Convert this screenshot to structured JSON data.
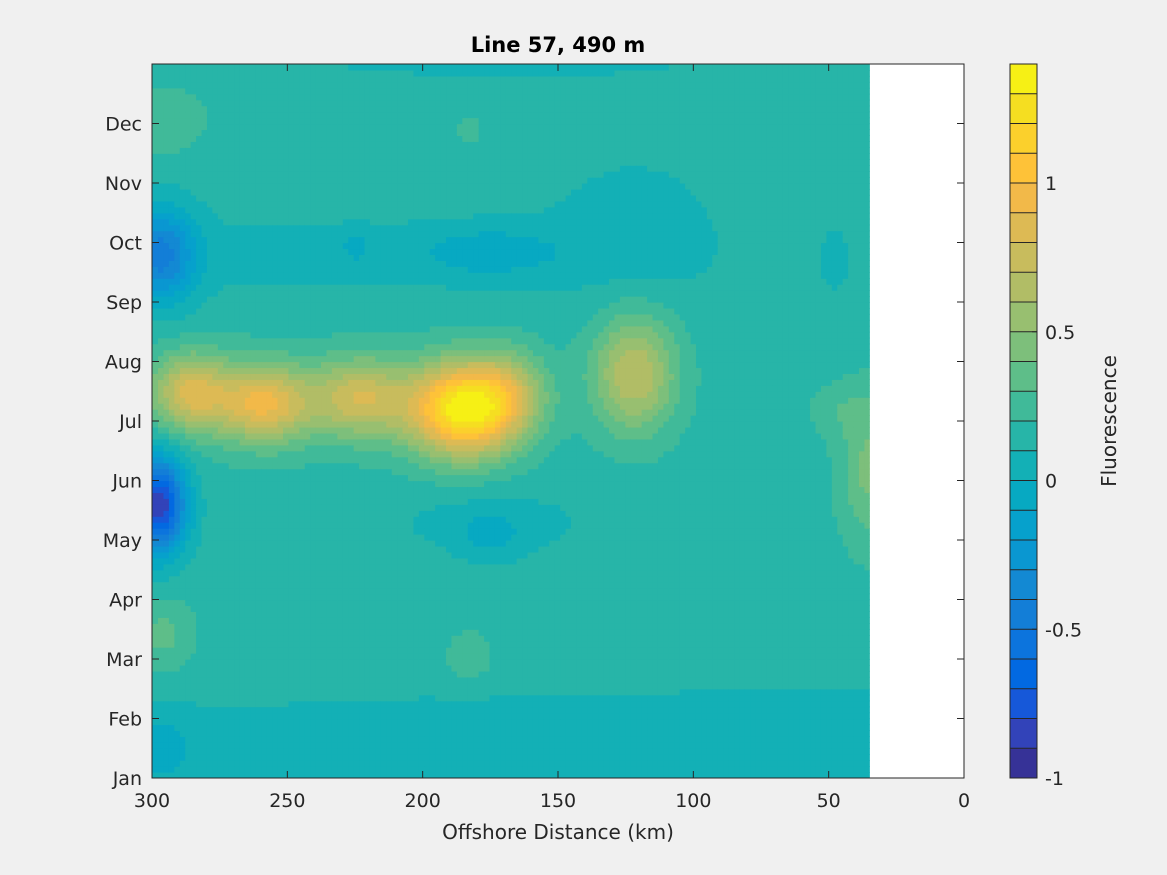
{
  "chart_data": {
    "type": "heatmap",
    "title": "Line 57, 490 m",
    "xlabel": "Offshore Distance (km)",
    "ylabel": "",
    "x_reversed": true,
    "xlim": [
      0,
      300
    ],
    "x_ticks": [
      300,
      250,
      200,
      150,
      100,
      50,
      0
    ],
    "x_tick_labels": [
      "300",
      "250",
      "200",
      "150",
      "100",
      "50",
      "0"
    ],
    "data_x_extent": [
      35,
      300
    ],
    "ylim": [
      1,
      13
    ],
    "y_ticks": [
      1,
      2,
      3,
      4,
      5,
      6,
      7,
      8,
      9,
      10,
      11,
      12
    ],
    "y_tick_labels": [
      "Jan",
      "Feb",
      "Mar",
      "Apr",
      "May",
      "Jun",
      "Jul",
      "Aug",
      "Sep",
      "Oct",
      "Nov",
      "Dec"
    ],
    "colorbar": {
      "label": "Fluorescence",
      "range": [
        -1,
        1.4
      ],
      "ticks": [
        -1,
        -0.5,
        0,
        0.5,
        1
      ],
      "tick_labels": [
        "-1",
        "-0.5",
        "0",
        "0.5",
        "1"
      ],
      "levels": 24,
      "colormap": "parula"
    },
    "background_value": 0.15,
    "features": [
      {
        "x": 185,
        "y": 7.2,
        "sx": 14,
        "sy": 0.55,
        "amp": 1.15
      },
      {
        "x": 168,
        "y": 7.5,
        "sx": 10,
        "sy": 0.5,
        "amp": 0.35
      },
      {
        "x": 122,
        "y": 7.8,
        "sx": 11,
        "sy": 0.7,
        "amp": 0.55
      },
      {
        "x": 223,
        "y": 7.4,
        "sx": 12,
        "sy": 0.45,
        "amp": 0.5
      },
      {
        "x": 259,
        "y": 7.3,
        "sx": 12,
        "sy": 0.45,
        "amp": 0.65
      },
      {
        "x": 286,
        "y": 7.5,
        "sx": 10,
        "sy": 0.45,
        "amp": 0.6
      },
      {
        "x": 240,
        "y": 7.35,
        "sx": 40,
        "sy": 0.6,
        "amp": 0.15
      },
      {
        "x": 35,
        "y": 6.2,
        "sx": 8,
        "sy": 0.9,
        "amp": 0.28
      },
      {
        "x": 48,
        "y": 7.2,
        "sx": 8,
        "sy": 0.3,
        "amp": 0.1
      },
      {
        "x": 298,
        "y": 5.6,
        "sx": 7,
        "sy": 0.55,
        "amp": -1.05
      },
      {
        "x": 297,
        "y": 9.8,
        "sx": 9,
        "sy": 0.55,
        "amp": -0.55
      },
      {
        "x": 240,
        "y": 9.8,
        "sx": 80,
        "sy": 0.5,
        "amp": -0.08
      },
      {
        "x": 175,
        "y": 9.85,
        "sx": 18,
        "sy": 0.3,
        "amp": -0.17
      },
      {
        "x": 225,
        "y": 9.95,
        "sx": 4,
        "sy": 0.2,
        "amp": -0.12
      },
      {
        "x": 122,
        "y": 10.2,
        "sx": 22,
        "sy": 0.9,
        "amp": -0.1
      },
      {
        "x": 48,
        "y": 9.7,
        "sx": 4,
        "sy": 0.35,
        "amp": -0.12
      },
      {
        "x": 175,
        "y": 5.3,
        "sx": 25,
        "sy": 0.4,
        "amp": -0.1
      },
      {
        "x": 175,
        "y": 5.05,
        "sx": 8,
        "sy": 0.3,
        "amp": -0.12
      },
      {
        "x": 60,
        "y": 1.6,
        "sx": 220,
        "sy": 0.65,
        "amp": -0.12
      },
      {
        "x": 296,
        "y": 1.5,
        "sx": 7,
        "sy": 0.45,
        "amp": -0.15
      },
      {
        "x": 296,
        "y": 3.4,
        "sx": 8,
        "sy": 0.45,
        "amp": 0.18
      },
      {
        "x": 183,
        "y": 3.05,
        "sx": 6,
        "sy": 0.3,
        "amp": 0.15
      },
      {
        "x": 295,
        "y": 12.1,
        "sx": 10,
        "sy": 0.4,
        "amp": 0.15
      },
      {
        "x": 183,
        "y": 11.9,
        "sx": 3,
        "sy": 0.15,
        "amp": 0.12
      },
      {
        "x": 170,
        "y": 13.0,
        "sx": 100,
        "sy": 0.3,
        "amp": -0.06
      }
    ]
  }
}
